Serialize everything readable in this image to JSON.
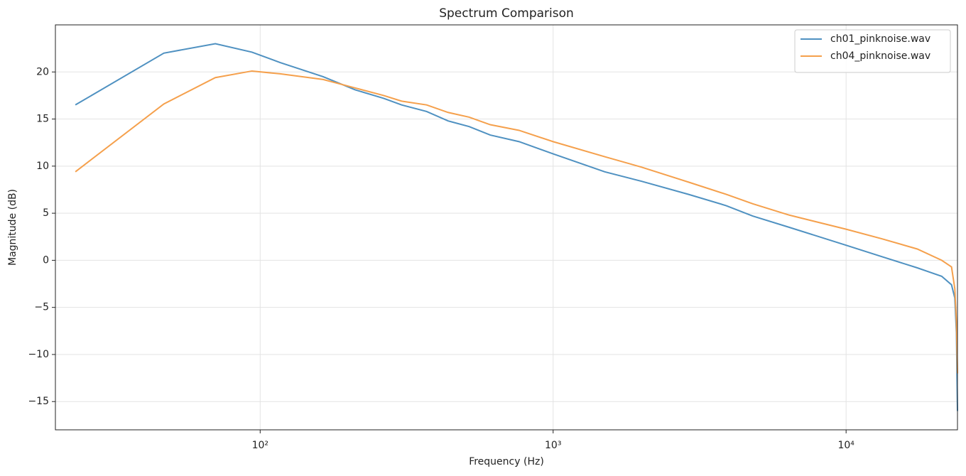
{
  "chart_data": {
    "type": "line",
    "title": "Spectrum Comparison",
    "x_label": "Frequency (Hz)",
    "y_label": "Magnitude (dB)",
    "x_scale": "log",
    "grid": true,
    "legend_position": "upper right",
    "xlim": [
      20,
      24000
    ],
    "ylim": [
      -18,
      25
    ],
    "xticks": [
      {
        "value": 100,
        "label": "10²"
      },
      {
        "value": 1000,
        "label": "10³"
      },
      {
        "value": 10000,
        "label": "10⁴"
      }
    ],
    "yticks": [
      {
        "value": -15,
        "label": "−15"
      },
      {
        "value": -10,
        "label": "−10"
      },
      {
        "value": -5,
        "label": "−5"
      },
      0,
      5,
      10,
      15,
      20
    ],
    "x": [
      23.4,
      46.9,
      70.3,
      93.75,
      117,
      164,
      211,
      264,
      304,
      370,
      438,
      517,
      610,
      765,
      1000,
      1500,
      2000,
      2900,
      3900,
      4800,
      6400,
      10000,
      13200,
      17500,
      21200,
      22900,
      23500,
      23800,
      24000
    ],
    "series": [
      {
        "name": "ch01_pinknoise.wav",
        "color": "#4f91c1",
        "values": [
          16.5,
          22.0,
          23.0,
          22.1,
          21.0,
          19.5,
          18.1,
          17.2,
          16.5,
          15.8,
          14.8,
          14.2,
          13.3,
          12.6,
          11.3,
          9.4,
          8.4,
          7.0,
          5.8,
          4.7,
          3.5,
          1.6,
          0.4,
          -0.8,
          -1.7,
          -2.6,
          -4.0,
          -7.7,
          -16.0
        ]
      },
      {
        "name": "ch04_pinknoise.wav",
        "color": "#f5a04c",
        "values": [
          9.4,
          16.6,
          19.4,
          20.1,
          19.8,
          19.2,
          18.3,
          17.5,
          16.9,
          16.5,
          15.7,
          15.2,
          14.4,
          13.8,
          12.6,
          11.0,
          9.9,
          8.3,
          7.0,
          6.0,
          4.8,
          3.3,
          2.3,
          1.2,
          0.0,
          -0.7,
          -3.0,
          -6.5,
          -12.0
        ]
      }
    ]
  }
}
